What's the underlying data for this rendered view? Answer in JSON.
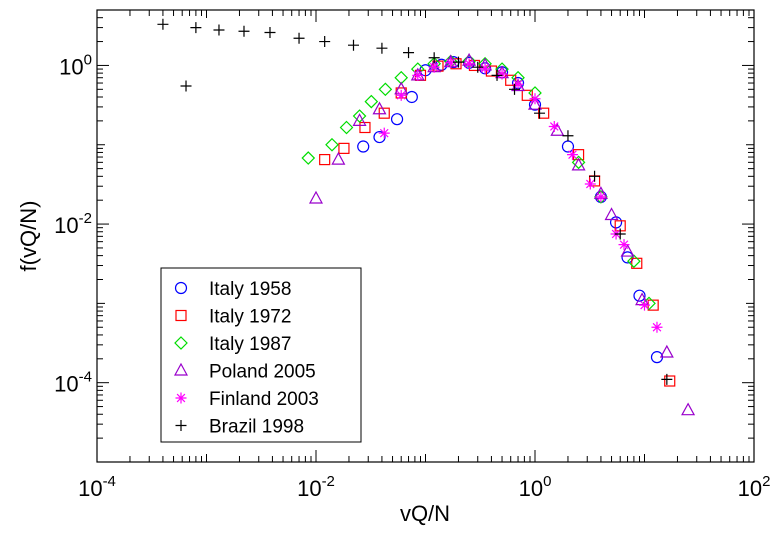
{
  "chart_data": {
    "type": "scatter",
    "xlabel": "vQ/N",
    "ylabel": "f(vQ/N)",
    "xscale": "log",
    "yscale": "log",
    "xlim": [
      0.0001,
      100
    ],
    "ylim": [
      1e-05,
      5
    ],
    "xticks": [
      {
        "base": "10",
        "exp": "-4"
      },
      {
        "base": "10",
        "exp": "-2"
      },
      {
        "base": "10",
        "exp": "0"
      },
      {
        "base": "10",
        "exp": "2"
      }
    ],
    "yticks": [
      {
        "base": "10",
        "exp": "-4"
      },
      {
        "base": "10",
        "exp": "-2"
      },
      {
        "base": "10",
        "exp": "0"
      }
    ],
    "grid": false,
    "legend_position": "bottom-left",
    "series": [
      {
        "name": "Italy 1958",
        "marker": "circle",
        "color": "#0000ff",
        "points": [
          [
            0.027,
            0.095
          ],
          [
            0.038,
            0.125
          ],
          [
            0.055,
            0.21
          ],
          [
            0.075,
            0.4
          ],
          [
            0.1,
            0.87
          ],
          [
            0.14,
            1.02
          ],
          [
            0.18,
            1.1
          ],
          [
            0.25,
            1.08
          ],
          [
            0.35,
            0.92
          ],
          [
            0.5,
            0.82
          ],
          [
            0.7,
            0.6
          ],
          [
            1.0,
            0.32
          ],
          [
            2.0,
            0.095
          ],
          [
            4.0,
            0.022
          ],
          [
            5.5,
            0.0105
          ],
          [
            7.0,
            0.0038
          ],
          [
            9.0,
            0.00125
          ],
          [
            13.0,
            0.00021
          ]
        ]
      },
      {
        "name": "Italy 1972",
        "marker": "square",
        "color": "#ff0000",
        "points": [
          [
            0.012,
            0.065
          ],
          [
            0.018,
            0.09
          ],
          [
            0.028,
            0.165
          ],
          [
            0.042,
            0.25
          ],
          [
            0.06,
            0.45
          ],
          [
            0.09,
            0.75
          ],
          [
            0.13,
            0.98
          ],
          [
            0.19,
            1.05
          ],
          [
            0.28,
            1.0
          ],
          [
            0.4,
            0.85
          ],
          [
            0.6,
            0.65
          ],
          [
            0.85,
            0.42
          ],
          [
            1.2,
            0.25
          ],
          [
            2.5,
            0.075
          ],
          [
            3.5,
            0.035
          ],
          [
            6.0,
            0.0095
          ],
          [
            8.5,
            0.0032
          ],
          [
            12.0,
            0.00095
          ],
          [
            17.0,
            0.000105
          ]
        ]
      },
      {
        "name": "Italy 1987",
        "marker": "diamond",
        "color": "#00dd00",
        "points": [
          [
            0.0085,
            0.068
          ],
          [
            0.014,
            0.1
          ],
          [
            0.019,
            0.165
          ],
          [
            0.025,
            0.23
          ],
          [
            0.032,
            0.35
          ],
          [
            0.043,
            0.5
          ],
          [
            0.06,
            0.7
          ],
          [
            0.085,
            0.9
          ],
          [
            0.12,
            1.05
          ],
          [
            0.17,
            1.12
          ],
          [
            0.25,
            1.13
          ],
          [
            0.35,
            1.05
          ],
          [
            0.5,
            0.9
          ],
          [
            0.7,
            0.7
          ],
          [
            1.0,
            0.45
          ],
          [
            2.5,
            0.06
          ],
          [
            4.0,
            0.022
          ],
          [
            8.0,
            0.0034
          ],
          [
            11.0,
            0.001
          ]
        ]
      },
      {
        "name": "Poland 2005",
        "marker": "triangle",
        "color": "#9900cc",
        "points": [
          [
            0.01,
            0.021
          ],
          [
            0.016,
            0.065
          ],
          [
            0.025,
            0.2
          ],
          [
            0.038,
            0.28
          ],
          [
            0.06,
            0.5
          ],
          [
            0.085,
            0.75
          ],
          [
            0.12,
            0.95
          ],
          [
            0.17,
            1.1
          ],
          [
            0.25,
            1.15
          ],
          [
            0.35,
            1.0
          ],
          [
            0.5,
            0.8
          ],
          [
            0.7,
            0.55
          ],
          [
            1.0,
            0.32
          ],
          [
            1.6,
            0.15
          ],
          [
            2.5,
            0.055
          ],
          [
            4.0,
            0.024
          ],
          [
            5.0,
            0.013
          ],
          [
            7.0,
            0.0045
          ],
          [
            9.5,
            0.0011
          ],
          [
            16.0,
            0.00024
          ],
          [
            25.0,
            4.5e-05
          ]
        ]
      },
      {
        "name": "Finland 2003",
        "marker": "asterisk",
        "color": "#ff00ff",
        "points": [
          [
            0.042,
            0.14
          ],
          [
            0.06,
            0.42
          ],
          [
            0.085,
            0.75
          ],
          [
            0.12,
            0.95
          ],
          [
            0.17,
            1.08
          ],
          [
            0.25,
            1.05
          ],
          [
            0.35,
            0.92
          ],
          [
            0.5,
            0.78
          ],
          [
            0.7,
            0.58
          ],
          [
            1.0,
            0.38
          ],
          [
            1.5,
            0.17
          ],
          [
            2.2,
            0.075
          ],
          [
            3.2,
            0.032
          ],
          [
            4.0,
            0.022
          ],
          [
            5.5,
            0.0075
          ],
          [
            6.5,
            0.0055
          ],
          [
            10.0,
            0.00095
          ],
          [
            13.0,
            0.0005
          ]
        ]
      },
      {
        "name": "Brazil 1998",
        "marker": "plus",
        "color": "#000000",
        "points": [
          [
            0.0004,
            3.3
          ],
          [
            0.00065,
            0.55
          ],
          [
            0.0008,
            3.0
          ],
          [
            0.0013,
            2.8
          ],
          [
            0.0022,
            2.7
          ],
          [
            0.0038,
            2.6
          ],
          [
            0.007,
            2.2
          ],
          [
            0.012,
            2.0
          ],
          [
            0.022,
            1.8
          ],
          [
            0.04,
            1.65
          ],
          [
            0.07,
            1.45
          ],
          [
            0.12,
            1.25
          ],
          [
            0.2,
            1.1
          ],
          [
            0.3,
            0.95
          ],
          [
            0.45,
            0.75
          ],
          [
            0.65,
            0.5
          ],
          [
            1.1,
            0.25
          ],
          [
            2.0,
            0.13
          ],
          [
            3.5,
            0.04
          ],
          [
            6.0,
            0.0075
          ],
          [
            16.0,
            0.00011
          ]
        ]
      }
    ]
  }
}
